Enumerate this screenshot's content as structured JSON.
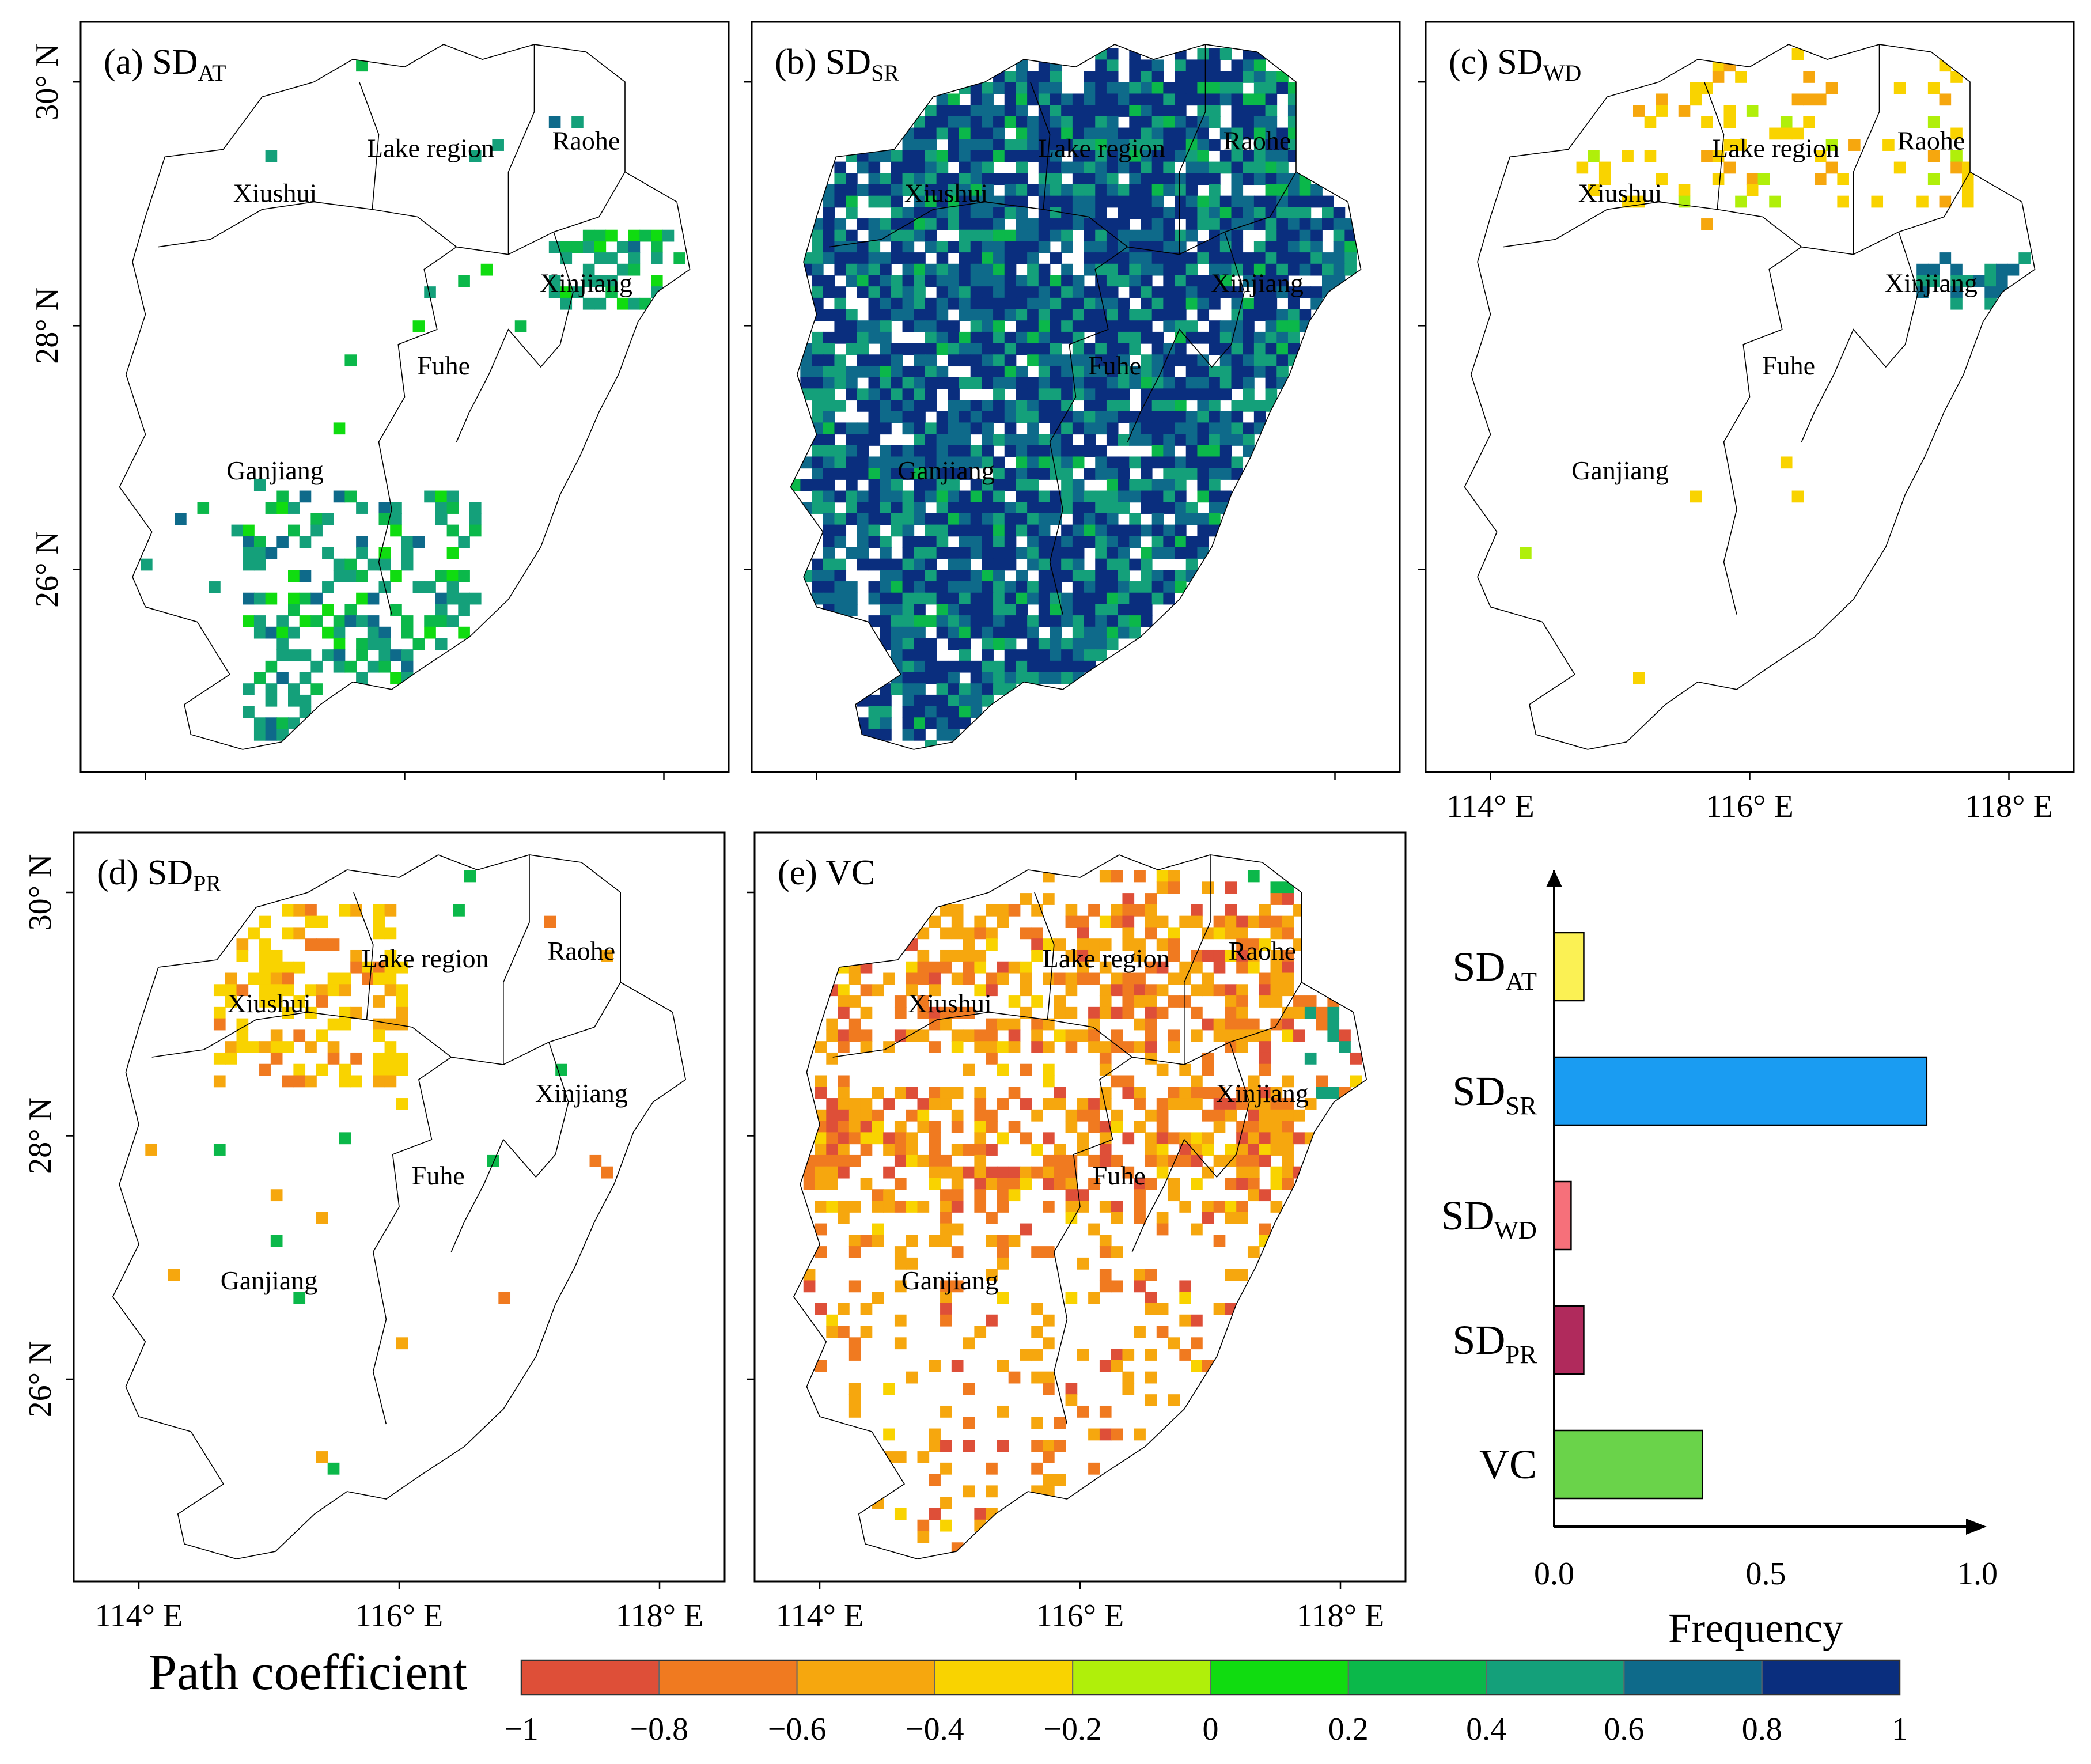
{
  "panels": [
    {
      "letter": "(a)",
      "var": "SD",
      "sub": "AT",
      "fill": "sparse_pos"
    },
    {
      "letter": "(b)",
      "var": "SD",
      "sub": "SR",
      "fill": "dense_pos"
    },
    {
      "letter": "(c)",
      "var": "SD",
      "sub": "WD",
      "fill": "sparse_neg"
    },
    {
      "letter": "(d)",
      "var": "SD",
      "sub": "PR",
      "fill": "sparse_neg2"
    },
    {
      "letter": "(e)",
      "var": "VC",
      "sub": "",
      "fill": "medium_neg"
    }
  ],
  "regions": [
    "Xiushui",
    "Lake region",
    "Raohe",
    "Xinjiang",
    "Fuhe",
    "Ganjiang"
  ],
  "lat_ticks": [
    "30° N",
    "28° N",
    "26° N"
  ],
  "lon_ticks": [
    "114° E",
    "116° E",
    "118° E"
  ],
  "colorbar": {
    "title": "Path coefficient",
    "ticks": [
      "−1",
      "−0.8",
      "−0.6",
      "−0.4",
      "−0.2",
      "0",
      "0.2",
      "0.4",
      "0.6",
      "0.8",
      "1"
    ],
    "colors": [
      "#de4f38",
      "#f07a20",
      "#f6a70e",
      "#f9d300",
      "#b0ef0a",
      "#10dc10",
      "#0bb84a",
      "#14a07a",
      "#0e6a8a",
      "#0a2e7e"
    ]
  },
  "chart_data": {
    "type": "bar",
    "orientation": "horizontal",
    "title": "",
    "xlabel": "Frequency",
    "ylabel": "",
    "xlim": [
      0,
      1.0
    ],
    "xticks": [
      "0.0",
      "0.5",
      "1.0"
    ],
    "categories": [
      {
        "base": "SD",
        "sub": "AT"
      },
      {
        "base": "SD",
        "sub": "SR"
      },
      {
        "base": "SD",
        "sub": "WD"
      },
      {
        "base": "SD",
        "sub": "PR"
      },
      {
        "base": "VC",
        "sub": ""
      }
    ],
    "values": [
      0.07,
      0.88,
      0.04,
      0.07,
      0.35
    ],
    "colors": [
      "#fbf154",
      "#1a9cf2",
      "#f6707a",
      "#b02a5c",
      "#6ad34a"
    ]
  }
}
